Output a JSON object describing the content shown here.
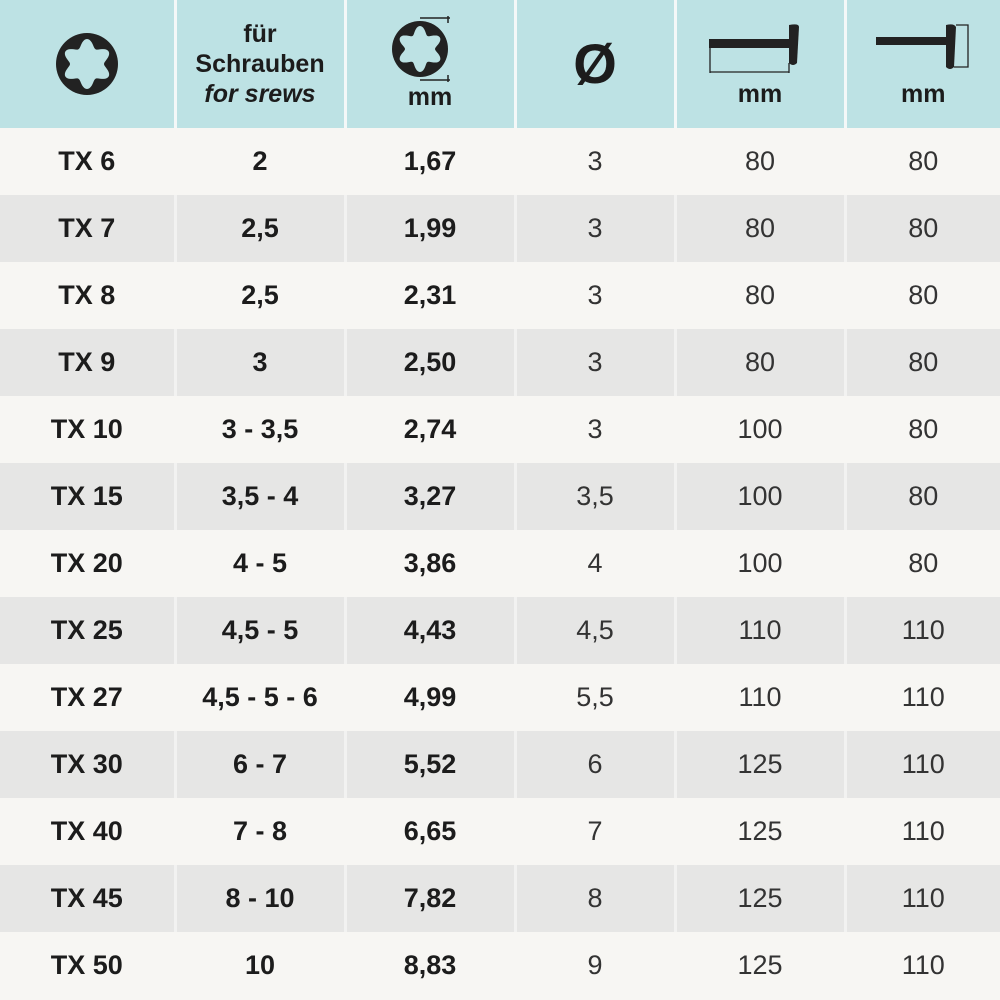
{
  "header": {
    "col0_icon": "torx-profile-icon",
    "col1": {
      "line1": "für",
      "line2": "Schrauben",
      "line3": "for srews"
    },
    "col2": {
      "icon": "torx-width-icon",
      "unit": "mm"
    },
    "col3": {
      "icon": "diameter-icon",
      "label": "Ø"
    },
    "col4": {
      "icon": "blade-length-icon",
      "unit": "mm"
    },
    "col5": {
      "icon": "handle-length-icon",
      "unit": "mm"
    }
  },
  "rows": [
    [
      "TX 6",
      "2",
      "1,67",
      "3",
      "80",
      "80"
    ],
    [
      "TX 7",
      "2,5",
      "1,99",
      "3",
      "80",
      "80"
    ],
    [
      "TX 8",
      "2,5",
      "2,31",
      "3",
      "80",
      "80"
    ],
    [
      "TX 9",
      "3",
      "2,50",
      "3",
      "80",
      "80"
    ],
    [
      "TX 10",
      "3 - 3,5",
      "2,74",
      "3",
      "100",
      "80"
    ],
    [
      "TX 15",
      "3,5 - 4",
      "3,27",
      "3,5",
      "100",
      "80"
    ],
    [
      "TX 20",
      "4 - 5",
      "3,86",
      "4",
      "100",
      "80"
    ],
    [
      "TX 25",
      "4,5 - 5",
      "4,43",
      "4,5",
      "110",
      "110"
    ],
    [
      "TX 27",
      "4,5 - 5 - 6",
      "4,99",
      "5,5",
      "110",
      "110"
    ],
    [
      "TX 30",
      "6 - 7",
      "5,52",
      "6",
      "125",
      "110"
    ],
    [
      "TX 40",
      "7 - 8",
      "6,65",
      "7",
      "125",
      "110"
    ],
    [
      "TX 45",
      "8 - 10",
      "7,82",
      "8",
      "125",
      "110"
    ],
    [
      "TX 50",
      "10",
      "8,83",
      "9",
      "125",
      "110"
    ]
  ],
  "colors": {
    "header_bg": "#bde2e4",
    "alt_row_bg": "#e6e6e5"
  }
}
